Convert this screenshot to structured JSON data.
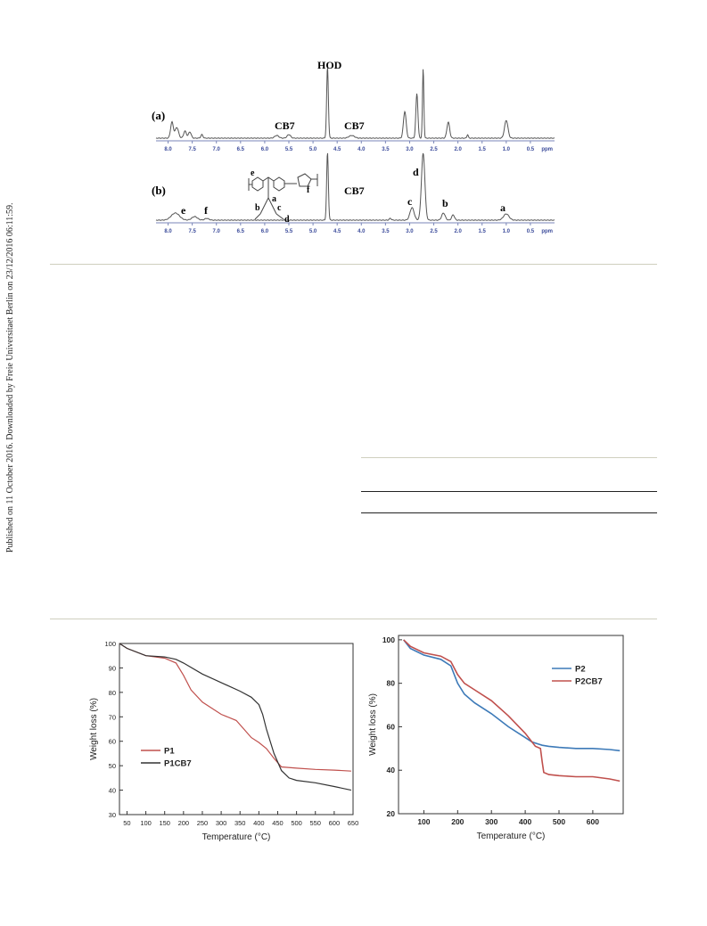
{
  "side_note": "Published on 11 October 2016. Downloaded by Freie Universitaet Berlin on 23/12/2016 06:11:59.",
  "nmr": {
    "panel_a_label": "(a)",
    "panel_b_label": "(b)",
    "hod_label": "HOD",
    "cb7_label": "CB7",
    "ppm_unit": "ppm",
    "ticks": [
      "8.0",
      "7.5",
      "7.0",
      "6.5",
      "6.0",
      "5.5",
      "5.0",
      "4.5",
      "4.0",
      "3.5",
      "3.0",
      "2.5",
      "2.0",
      "1.5",
      "1.0",
      "0.5"
    ],
    "peak_labels": [
      "e",
      "f",
      "c",
      "d",
      "b",
      "a"
    ],
    "structure_labels": [
      "e",
      "f",
      "a",
      "b",
      "c",
      "d"
    ]
  },
  "chart_data": [
    {
      "type": "line",
      "xlabel": "Temperature (°C)",
      "ylabel": "Weight loss (%)",
      "xlim": [
        30,
        650
      ],
      "ylim": [
        30,
        100
      ],
      "xticks": [
        50,
        100,
        150,
        200,
        250,
        300,
        350,
        400,
        450,
        500,
        550,
        600,
        650
      ],
      "yticks": [
        30,
        40,
        50,
        60,
        70,
        80,
        90,
        100
      ],
      "legend_position": "bottom-left",
      "series": [
        {
          "name": "P1",
          "color": "#c0504d",
          "x": [
            30,
            50,
            100,
            150,
            180,
            200,
            220,
            250,
            300,
            340,
            360,
            380,
            400,
            420,
            440,
            460,
            500,
            550,
            600,
            645
          ],
          "y": [
            100,
            98,
            95,
            94,
            92,
            87,
            81,
            76,
            71,
            68.5,
            65,
            61.5,
            59.5,
            57,
            53,
            49.5,
            49,
            48.5,
            48.2,
            47.8
          ]
        },
        {
          "name": "P1CB7",
          "color": "#333333",
          "x": [
            30,
            50,
            100,
            150,
            180,
            200,
            250,
            300,
            350,
            380,
            400,
            410,
            420,
            440,
            460,
            480,
            500,
            550,
            600,
            645
          ],
          "y": [
            100,
            98,
            95,
            94.5,
            93.5,
            92,
            87.5,
            84,
            80.5,
            78,
            75,
            71,
            65,
            55,
            48,
            45,
            44,
            43,
            41.5,
            40
          ]
        }
      ]
    },
    {
      "type": "line",
      "xlabel": "Temperature (°C)",
      "ylabel": "Weight loss (%)",
      "xlim": [
        25,
        690
      ],
      "ylim": [
        20,
        102
      ],
      "xticks": [
        100,
        200,
        300,
        400,
        500,
        600
      ],
      "yticks": [
        20,
        40,
        60,
        80,
        100
      ],
      "legend_position": "top-right",
      "series": [
        {
          "name": "P2",
          "color": "#3d7ab8",
          "x": [
            40,
            60,
            100,
            150,
            180,
            200,
            220,
            250,
            300,
            350,
            400,
            420,
            440,
            450,
            470,
            500,
            550,
            600,
            650,
            680
          ],
          "y": [
            100,
            96,
            93,
            91,
            88,
            80,
            75,
            71,
            66,
            60,
            55,
            53,
            52,
            51.5,
            51,
            50.5,
            50,
            50,
            49.5,
            49
          ]
        },
        {
          "name": "P2CB7",
          "color": "#c0504d",
          "x": [
            40,
            60,
            100,
            150,
            180,
            200,
            220,
            250,
            300,
            350,
            400,
            430,
            445,
            450,
            455,
            470,
            500,
            550,
            600,
            650,
            680
          ],
          "y": [
            100,
            97,
            94,
            92.5,
            90,
            84,
            80,
            77,
            72,
            65,
            57,
            51,
            50,
            44,
            39,
            38,
            37.5,
            37,
            37,
            36,
            35
          ]
        }
      ]
    }
  ]
}
